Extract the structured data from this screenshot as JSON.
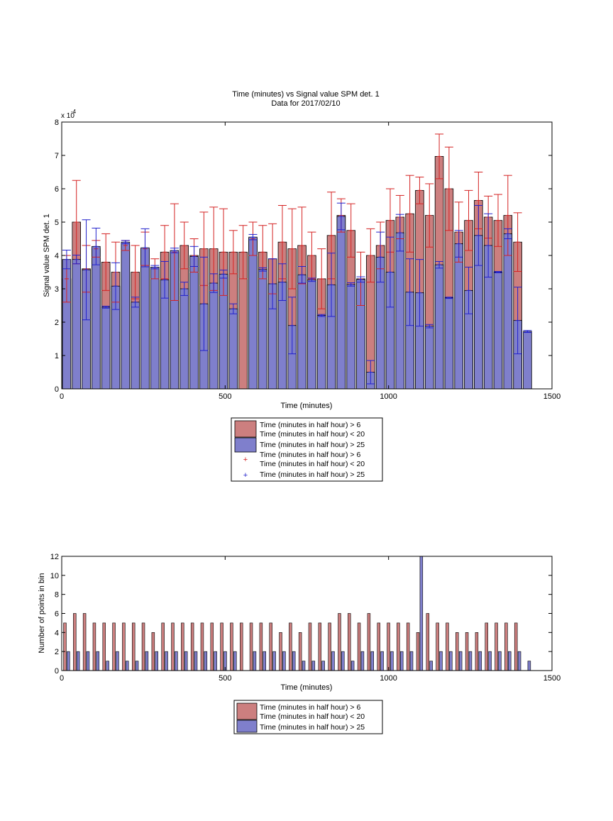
{
  "chart_data": [
    {
      "type": "bar",
      "title": "Time (minutes) vs Signal value SPM det. 1",
      "subtitle": "Data for 2017/02/10",
      "xlabel": "Time (minutes)",
      "ylabel": "Signal value SPM det. 1",
      "exponent_label": "x 10",
      "exponent_power": "-4",
      "xlim": [
        0,
        1500
      ],
      "ylim": [
        0,
        8
      ],
      "xticks": [
        "0",
        "500",
        "1000",
        "1500"
      ],
      "yticks": [
        "0",
        "1",
        "2",
        "3",
        "4",
        "5",
        "6",
        "7",
        "8"
      ],
      "grid": false,
      "legend_position": "below",
      "bin_width": 30,
      "x": [
        15,
        45,
        75,
        105,
        135,
        165,
        195,
        225,
        255,
        285,
        315,
        345,
        375,
        405,
        435,
        465,
        495,
        525,
        555,
        585,
        615,
        645,
        675,
        705,
        735,
        765,
        795,
        825,
        855,
        885,
        915,
        945,
        975,
        1005,
        1035,
        1065,
        1095,
        1125,
        1155,
        1185,
        1215,
        1245,
        1275,
        1305,
        1335,
        1365,
        1395,
        1425
      ],
      "series": [
        {
          "name": "Time (minutes in half hour) > 6\nTime (minutes in half hour) < 20",
          "color": "#cc7f7f",
          "error_color": "#d42222",
          "values": [
            3.3,
            5.0,
            3.6,
            4.2,
            3.8,
            3.5,
            4.3,
            3.5,
            4.2,
            3.6,
            4.1,
            4.1,
            4.3,
            4.0,
            4.2,
            4.2,
            4.1,
            4.1,
            4.1,
            4.5,
            4.1,
            3.9,
            4.4,
            4.2,
            4.3,
            4.0,
            3.3,
            4.6,
            5.2,
            4.75,
            3.3,
            4.0,
            4.3,
            5.05,
            5.15,
            5.25,
            5.95,
            5.2,
            6.97,
            6.0,
            4.7,
            5.05,
            5.65,
            5.15,
            5.05,
            5.2,
            4.4,
            0
          ],
          "errors": [
            0.7,
            1.25,
            0.7,
            0.25,
            0.85,
            0.9,
            0.15,
            0.8,
            0.5,
            0.3,
            0.8,
            1.45,
            0.7,
            0.5,
            1.1,
            1.25,
            1.3,
            0.65,
            0.8,
            0.5,
            0.8,
            1.05,
            1.1,
            1.2,
            1.15,
            0.7,
            0.9,
            1.3,
            0.5,
            0.8,
            0.8,
            0.8,
            0.7,
            0.95,
            0.65,
            1.15,
            0.4,
            0.95,
            0.67,
            1.25,
            0.9,
            0.9,
            0.85,
            0.63,
            0.78,
            1.2,
            0.88,
            0
          ]
        },
        {
          "name": "Time (minutes in half hour) > 25",
          "color": "#7f7fcc",
          "error_color": "#2222cc",
          "values": [
            3.88,
            3.88,
            3.57,
            4.27,
            2.45,
            3.08,
            4.4,
            2.6,
            4.23,
            3.65,
            3.27,
            4.15,
            3.0,
            3.97,
            2.55,
            3.17,
            3.44,
            2.4,
            0,
            4.55,
            3.58,
            3.15,
            3.2,
            1.9,
            3.42,
            3.27,
            2.2,
            3.12,
            5.17,
            3.13,
            3.28,
            0.5,
            3.95,
            3.5,
            4.68,
            2.9,
            2.88,
            1.88,
            3.72,
            2.73,
            4.35,
            2.95,
            4.6,
            4.3,
            3.5,
            4.65,
            2.05,
            1.72
          ],
          "errors": [
            0.28,
            0.13,
            1.5,
            0.55,
            0.03,
            0.7,
            0.05,
            0.15,
            0.57,
            0.05,
            0.55,
            0.07,
            0.2,
            0.3,
            1.4,
            0.28,
            0.12,
            0.15,
            0,
            0.08,
            0.05,
            0.75,
            0.55,
            0.85,
            0.25,
            0.05,
            0.03,
            0.95,
            0.4,
            0.05,
            0.08,
            0.35,
            0.75,
            1.05,
            0.55,
            1.0,
            1.0,
            0.05,
            0.1,
            0.02,
            0.4,
            0.7,
            0.9,
            0.95,
            0.02,
            0.15,
            1.0,
            0.03
          ]
        }
      ]
    },
    {
      "type": "bar",
      "xlabel": "Time (minutes)",
      "ylabel": "Number of points in bin",
      "xlim": [
        0,
        1500
      ],
      "ylim": [
        0,
        12
      ],
      "xticks": [
        "0",
        "500",
        "1000",
        "1500"
      ],
      "yticks": [
        "0",
        "2",
        "4",
        "6",
        "8",
        "10",
        "12"
      ],
      "grid": false,
      "legend_position": "below",
      "x": [
        15,
        45,
        75,
        105,
        135,
        165,
        195,
        225,
        255,
        285,
        315,
        345,
        375,
        405,
        435,
        465,
        495,
        525,
        555,
        585,
        615,
        645,
        675,
        705,
        735,
        765,
        795,
        825,
        855,
        885,
        915,
        945,
        975,
        1005,
        1035,
        1065,
        1095,
        1125,
        1155,
        1185,
        1215,
        1245,
        1275,
        1305,
        1335,
        1365,
        1395,
        1425
      ],
      "series": [
        {
          "name": "Time (minutes in half hour) > 6\nTime (minutes in half hour) < 20",
          "color": "#cc7f7f",
          "values": [
            5,
            6,
            6,
            5,
            5,
            5,
            5,
            5,
            5,
            4,
            5,
            5,
            5,
            5,
            5,
            5,
            5,
            5,
            5,
            5,
            5,
            5,
            4,
            5,
            4,
            5,
            5,
            5,
            6,
            6,
            5,
            6,
            5,
            5,
            5,
            5,
            4,
            6,
            5,
            5,
            4,
            4,
            4,
            5,
            5,
            5,
            5,
            0
          ]
        },
        {
          "name": "Time (minutes in half hour) > 25",
          "color": "#7f7fcc",
          "values": [
            2,
            2,
            2,
            2,
            1,
            2,
            1,
            1,
            2,
            2,
            2,
            2,
            2,
            2,
            2,
            2,
            2,
            2,
            0,
            2,
            2,
            2,
            2,
            2,
            1,
            1,
            1,
            2,
            2,
            1,
            2,
            2,
            2,
            2,
            2,
            2,
            12,
            1,
            2,
            2,
            2,
            2,
            2,
            2,
            2,
            2,
            2,
            1
          ]
        }
      ]
    }
  ]
}
